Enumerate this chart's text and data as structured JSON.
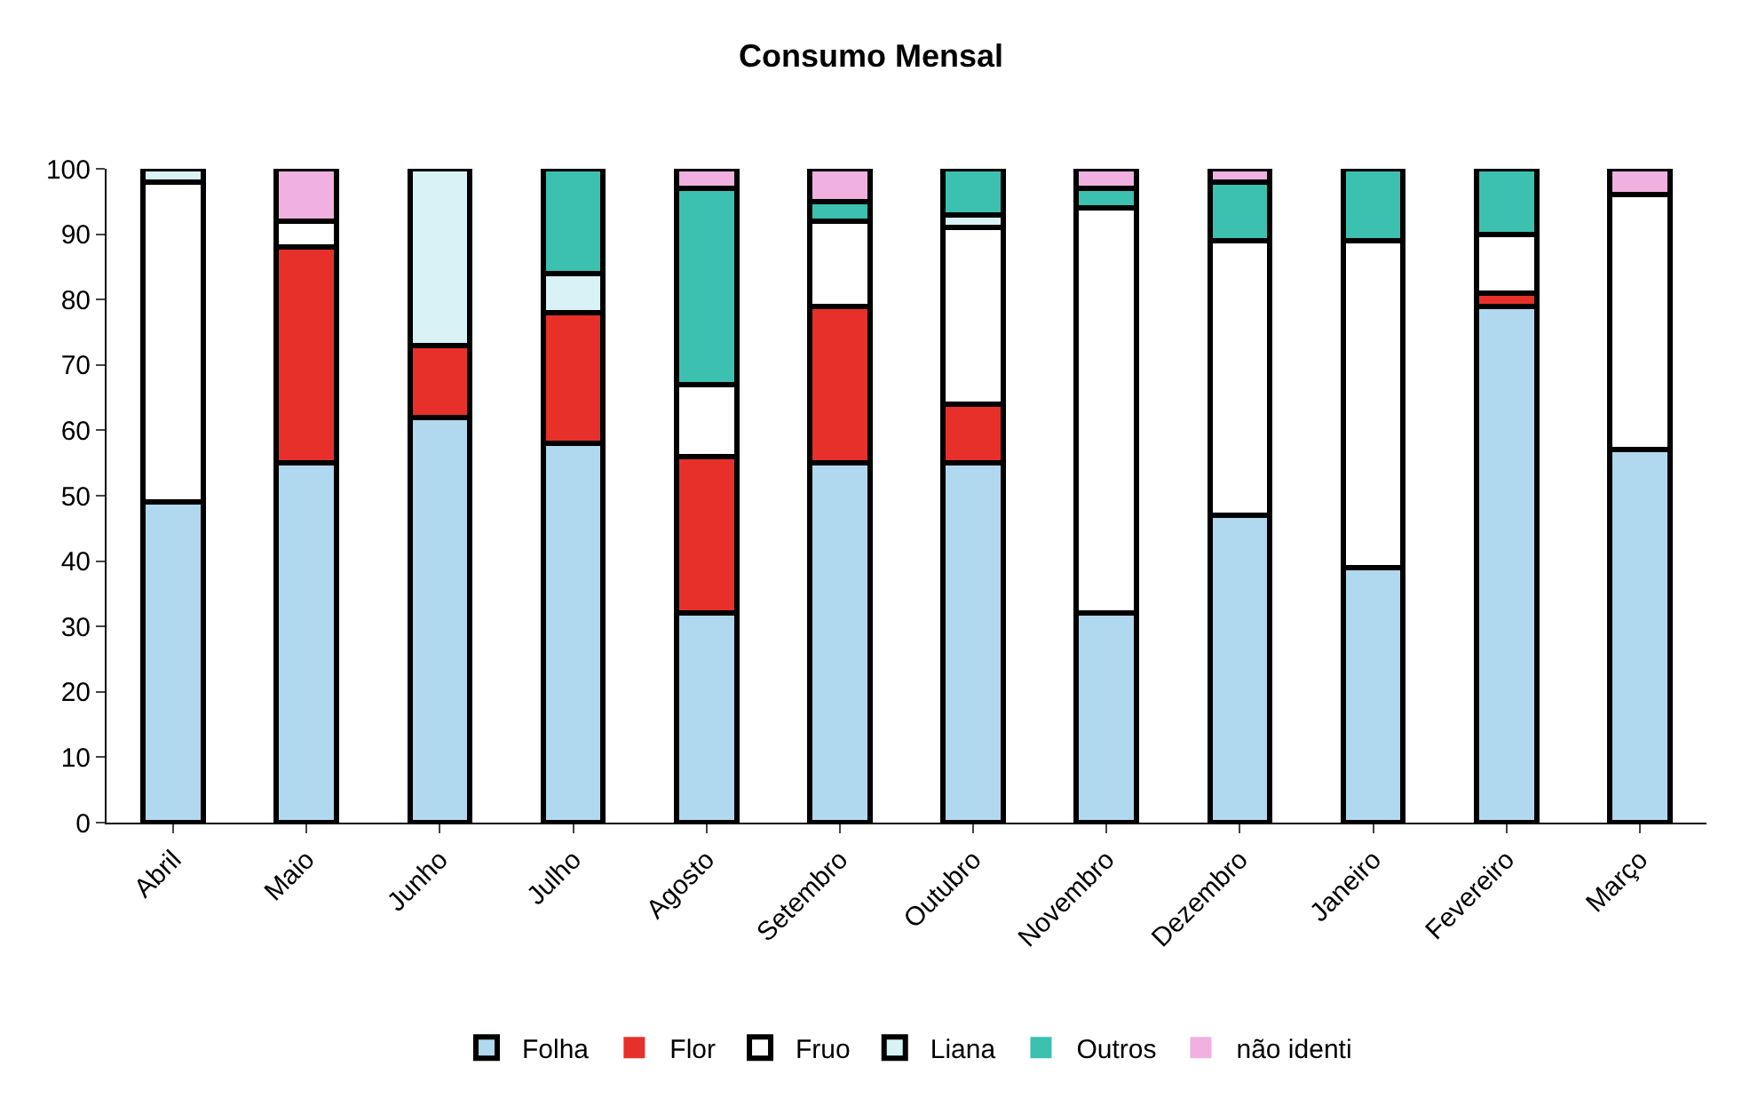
{
  "chart_data": {
    "type": "bar",
    "title": "Consumo Mensal",
    "stacked": true,
    "legend": "bottom",
    "categories": [
      "Abril",
      "Maio",
      "Junho",
      "Julho",
      "Agosto",
      "Setembro",
      "Outubro",
      "Novembro",
      "Dezembro",
      "Janeiro",
      "Fevereiro",
      "Março"
    ],
    "ylim": [
      0,
      100
    ],
    "yticks": [
      0,
      10,
      20,
      30,
      40,
      50,
      60,
      70,
      80,
      90,
      100
    ],
    "series": [
      {
        "name": "Folha",
        "color": "#b0d8ee",
        "values": [
          49,
          55,
          62,
          58,
          32,
          55,
          55,
          32,
          47,
          39,
          79,
          57
        ]
      },
      {
        "name": "Flor",
        "color": "#e8302a",
        "values": [
          0,
          33,
          11,
          20,
          24,
          24,
          9,
          0,
          0,
          0,
          2,
          0
        ]
      },
      {
        "name": "Fruo",
        "color": "#ffffff",
        "values": [
          49,
          4,
          0,
          0,
          11,
          13,
          27,
          62,
          42,
          50,
          9,
          39
        ]
      },
      {
        "name": "Liana",
        "color": "#d8f2f6",
        "values": [
          2,
          0,
          27,
          6,
          0,
          0,
          2,
          0,
          0,
          0,
          0,
          0
        ]
      },
      {
        "name": "Outros",
        "color": "#3cc0b0",
        "values": [
          0,
          0,
          0,
          16,
          30,
          3,
          7,
          3,
          9,
          11,
          10,
          0
        ]
      },
      {
        "name": "não identi",
        "color": "#f0b0e0",
        "values": [
          0,
          8,
          0,
          0,
          3,
          5,
          0,
          3,
          2,
          0,
          0,
          4
        ]
      }
    ]
  }
}
